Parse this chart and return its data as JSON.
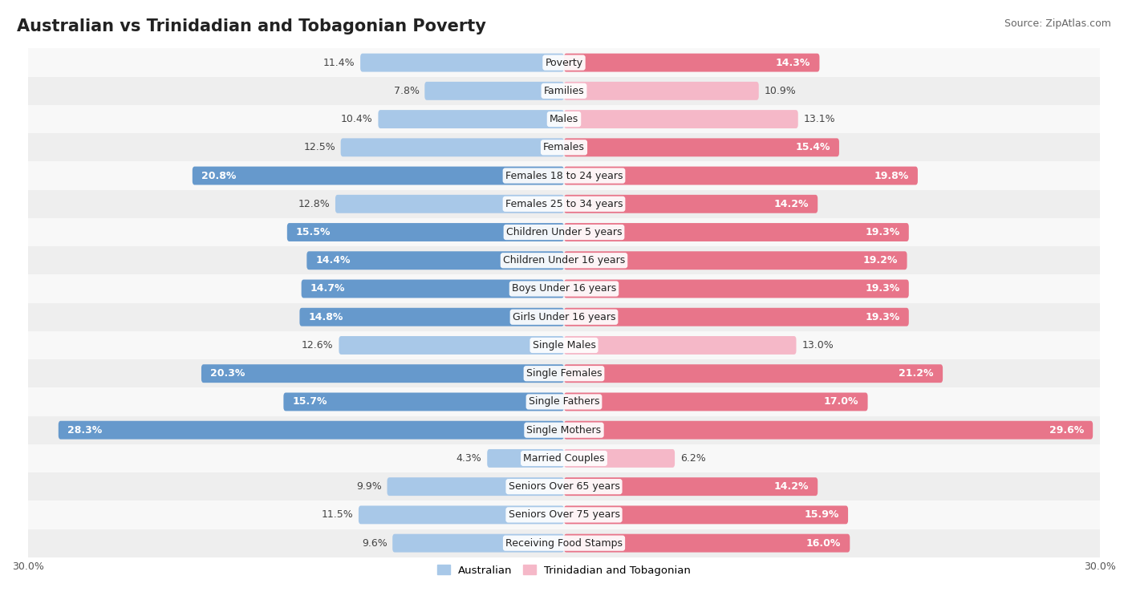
{
  "title": "Australian vs Trinidadian and Tobagonian Poverty",
  "source": "Source: ZipAtlas.com",
  "categories": [
    "Poverty",
    "Families",
    "Males",
    "Females",
    "Females 18 to 24 years",
    "Females 25 to 34 years",
    "Children Under 5 years",
    "Children Under 16 years",
    "Boys Under 16 years",
    "Girls Under 16 years",
    "Single Males",
    "Single Females",
    "Single Fathers",
    "Single Mothers",
    "Married Couples",
    "Seniors Over 65 years",
    "Seniors Over 75 years",
    "Receiving Food Stamps"
  ],
  "australian": [
    11.4,
    7.8,
    10.4,
    12.5,
    20.8,
    12.8,
    15.5,
    14.4,
    14.7,
    14.8,
    12.6,
    20.3,
    15.7,
    28.3,
    4.3,
    9.9,
    11.5,
    9.6
  ],
  "trinidadian": [
    14.3,
    10.9,
    13.1,
    15.4,
    19.8,
    14.2,
    19.3,
    19.2,
    19.3,
    19.3,
    13.0,
    21.2,
    17.0,
    29.6,
    6.2,
    14.2,
    15.9,
    16.0
  ],
  "australian_color_normal": "#a8c8e8",
  "australian_color_highlight": "#6699cc",
  "trinidadian_color_normal": "#f5b8c8",
  "trinidadian_color_highlight": "#e8758a",
  "row_color_even": "#f8f8f8",
  "row_color_odd": "#eeeeee",
  "max_value": 30.0,
  "title_fontsize": 15,
  "source_fontsize": 9,
  "label_fontsize": 9,
  "value_fontsize": 9,
  "threshold_inside": 14.0,
  "bar_height": 0.65
}
